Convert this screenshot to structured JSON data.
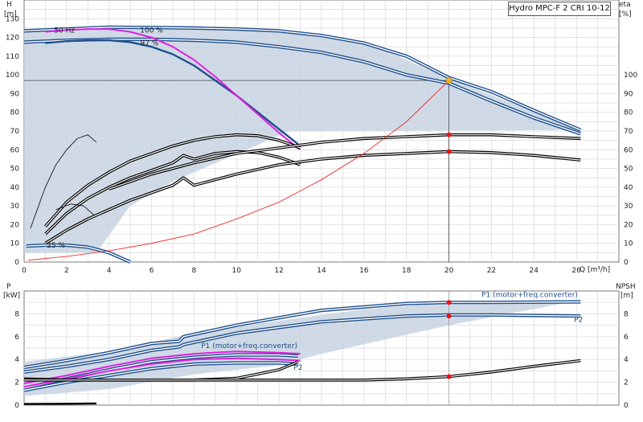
{
  "title": "Hydro MPC-F 2 CRI 10-12",
  "colors": {
    "envelope": "#c7d3e2",
    "curve": "#1f4f8c",
    "magenta": "#e020e0",
    "red": "#ee1111",
    "dot": "#f0b020",
    "black": "#000000"
  },
  "chart_data": [
    {
      "type": "line",
      "name": "head",
      "ylabel_left": [
        "H",
        "[m]"
      ],
      "ylabel_right": [
        "eta",
        "[%]"
      ],
      "xlabel": "Q [m³/h]",
      "xlim": [
        0,
        28
      ],
      "ylim": [
        0,
        140
      ],
      "x_ticks": [
        0,
        2,
        4,
        6,
        8,
        10,
        12,
        14,
        16,
        18,
        20,
        22,
        24,
        26
      ],
      "y_ticks_left": [
        0,
        10,
        20,
        30,
        40,
        50,
        60,
        70,
        80,
        90,
        100,
        110,
        120,
        130
      ],
      "y_ticks_right": [
        0,
        10,
        20,
        30,
        40,
        50,
        60,
        70,
        80,
        90,
        100
      ],
      "annotations": [
        {
          "text": "50 Hz",
          "x": 1.9,
          "y": 124
        },
        {
          "text": "100 %",
          "x": 6.0,
          "y": 124
        },
        {
          "text": "97 %",
          "x": 5.9,
          "y": 117
        },
        {
          "text": "25 %",
          "x": 1.5,
          "y": 9
        }
      ],
      "envelope": [
        [
          0,
          124
        ],
        [
          4,
          125.5
        ],
        [
          8,
          125
        ],
        [
          12,
          123.5
        ],
        [
          16,
          118
        ],
        [
          20,
          98
        ],
        [
          26.2,
          70.5
        ],
        [
          12.5,
          70
        ],
        [
          7,
          43
        ],
        [
          5,
          30
        ],
        [
          3.4,
          5
        ],
        [
          0,
          5
        ]
      ],
      "series": [
        {
          "name": "",
          "style": "blue-double",
          "x": [
            0,
            2,
            4,
            6,
            8,
            10,
            12,
            14,
            16,
            18,
            20,
            22,
            24,
            26.2
          ],
          "y": [
            123.5,
            124.5,
            125.5,
            125.3,
            125,
            124.5,
            123.5,
            121,
            117,
            110,
            98.5,
            91,
            81,
            70.5
          ]
        },
        {
          "name": "",
          "style": "blue-double",
          "x": [
            0,
            2,
            4,
            6,
            8,
            10,
            12,
            14,
            16,
            18,
            20,
            22,
            24,
            26.2
          ],
          "y": [
            117.5,
            118.5,
            119,
            119,
            118.5,
            117.5,
            115,
            112,
            107,
            100,
            95.5,
            86,
            77,
            68.5
          ]
        },
        {
          "name": "",
          "style": "blue",
          "x": [
            1,
            2,
            3,
            4,
            5,
            6,
            7,
            8,
            9,
            10,
            11,
            12,
            12.9
          ],
          "y": [
            117,
            118,
            118.5,
            118.5,
            117.5,
            115,
            111,
            105,
            97,
            89,
            80,
            71,
            63
          ]
        },
        {
          "name": "",
          "style": "magenta",
          "x": [
            1,
            2,
            3,
            4,
            5,
            6,
            7,
            8,
            9,
            10,
            11,
            12,
            13
          ],
          "y": [
            123,
            124,
            124.5,
            124.5,
            123,
            120,
            115,
            108,
            99,
            89,
            79,
            69,
            60
          ]
        },
        {
          "name": "",
          "style": "blue-double",
          "x": [
            0.1,
            1,
            2,
            3,
            4,
            5
          ],
          "y": [
            8.5,
            9,
            9,
            8,
            5,
            0
          ]
        },
        {
          "name": "",
          "style": "black-double",
          "x": [
            1,
            2,
            3,
            4,
            5,
            6,
            7,
            8,
            9,
            10,
            11,
            12,
            13
          ],
          "y": [
            19,
            32,
            41,
            48,
            54,
            58,
            62,
            65,
            67,
            68,
            67.5,
            65,
            61
          ]
        },
        {
          "name": "",
          "style": "black-double",
          "x": [
            1,
            2,
            3,
            4,
            5,
            6,
            7,
            7.5,
            8,
            9,
            10,
            11,
            12,
            13
          ],
          "y": [
            15,
            26,
            34,
            40,
            45,
            49,
            53,
            57,
            55,
            58,
            59,
            58.5,
            56,
            52
          ]
        },
        {
          "name": "",
          "style": "black-double",
          "x": [
            1,
            2,
            3,
            4,
            5,
            6,
            7,
            7.5,
            8,
            10,
            12,
            14,
            16,
            18,
            20,
            22,
            24,
            26.2
          ],
          "y": [
            10,
            17,
            23,
            28,
            33,
            37,
            41,
            45,
            41,
            47,
            52,
            55,
            57,
            58,
            59,
            58.5,
            57,
            54.5
          ]
        },
        {
          "name": "",
          "style": "black-double",
          "x": [
            4,
            6,
            8,
            10,
            12,
            14,
            16,
            18,
            20,
            22,
            24,
            26.2
          ],
          "y": [
            39,
            47,
            53,
            58,
            61,
            64,
            66,
            67,
            68,
            68,
            67,
            66
          ]
        },
        {
          "name": "",
          "style": "thin-black",
          "x": [
            0.3,
            1,
            1.5,
            2,
            2.5,
            3,
            3.4
          ],
          "y": [
            18,
            40,
            52,
            60,
            66,
            68,
            64
          ]
        },
        {
          "name": "",
          "style": "thin-black",
          "x": [
            1.5,
            2.2,
            2.8,
            3.3
          ],
          "y": [
            28,
            31,
            30,
            25
          ]
        },
        {
          "name": "",
          "style": "thin-red",
          "x": [
            0.2,
            2,
            4,
            6,
            8,
            10,
            12,
            14,
            16,
            18,
            20
          ],
          "y": [
            1,
            3,
            6,
            10,
            15,
            23,
            32,
            44,
            58,
            75,
            97
          ]
        }
      ],
      "duty_point": {
        "x": 20,
        "y": 97
      },
      "markers": [
        {
          "x": 20,
          "y": 68
        },
        {
          "x": 20,
          "y": 59
        }
      ]
    },
    {
      "type": "line",
      "name": "power",
      "ylabel_left": [
        "P",
        "[kW]"
      ],
      "ylabel_right": [
        "NPSH",
        "[m]"
      ],
      "xlim": [
        0,
        28
      ],
      "ylim": [
        0,
        10
      ],
      "y_ticks_left": [
        0,
        2,
        4,
        6,
        8
      ],
      "y_ticks_right": [
        0,
        2,
        4,
        6,
        8
      ],
      "labels": [
        {
          "text": "P1 (motor+freq.converter)",
          "x": 23.8,
          "y": 9.7
        },
        {
          "text": "P2",
          "x": 26.1,
          "y": 7.5
        },
        {
          "text": "P1 (motor+freq.converter)",
          "x": 10.6,
          "y": 5.2
        },
        {
          "text": "P2",
          "x": 12.9,
          "y": 3.3
        }
      ],
      "envelope": [
        [
          0,
          3.8
        ],
        [
          4,
          4.7
        ],
        [
          8,
          6.3
        ],
        [
          12,
          7.4
        ],
        [
          16,
          8.4
        ],
        [
          20,
          9
        ],
        [
          26.2,
          9.2
        ],
        [
          20,
          7
        ],
        [
          14,
          4.5
        ],
        [
          12,
          3.5
        ],
        [
          8,
          2.7
        ],
        [
          4,
          1.4
        ],
        [
          0,
          0.8
        ]
      ],
      "series": [
        {
          "name": "",
          "style": "blue-double",
          "x": [
            0,
            2,
            4,
            6,
            7.3,
            7.5,
            10,
            14,
            18,
            20,
            22,
            26.2
          ],
          "y": [
            3.3,
            3.9,
            4.6,
            5.4,
            5.6,
            6,
            7,
            8.3,
            8.9,
            9,
            9,
            9.05
          ]
        },
        {
          "name": "",
          "style": "blue-double",
          "x": [
            0,
            2,
            4,
            6,
            7.3,
            7.5,
            10,
            14,
            18,
            20,
            22,
            26.2
          ],
          "y": [
            2.9,
            3.4,
            4,
            4.8,
            5.1,
            5.3,
            6.3,
            7.3,
            7.8,
            7.9,
            7.9,
            7.8
          ]
        },
        {
          "name": "",
          "style": "blue-double",
          "x": [
            0,
            2,
            4,
            6,
            8,
            10,
            12,
            12.9
          ],
          "y": [
            1.5,
            2.3,
            3.1,
            3.8,
            4.2,
            4.4,
            4.4,
            4.3
          ]
        },
        {
          "name": "",
          "style": "blue-double",
          "x": [
            0,
            2,
            4,
            6,
            8,
            10,
            12,
            12.9
          ],
          "y": [
            1.3,
            2,
            2.6,
            3.2,
            3.6,
            3.7,
            3.7,
            3.6
          ]
        },
        {
          "name": "",
          "style": "magenta",
          "x": [
            0,
            2,
            4,
            6,
            8,
            10,
            12,
            13
          ],
          "y": [
            1.9,
            2.6,
            3.4,
            4.1,
            4.5,
            4.7,
            4.6,
            4.5
          ]
        },
        {
          "name": "",
          "style": "magenta",
          "x": [
            0,
            2,
            4,
            6,
            8,
            10,
            12,
            13
          ],
          "y": [
            1.6,
            2.3,
            3,
            3.6,
            4,
            4.1,
            4,
            3.9
          ]
        },
        {
          "name": "",
          "style": "black-double",
          "x": [
            0,
            2,
            4,
            6,
            8,
            10,
            12,
            12.9
          ],
          "y": [
            2.3,
            2.2,
            2.2,
            2.2,
            2.2,
            2.35,
            3.1,
            3.8
          ]
        },
        {
          "name": "",
          "style": "black-double",
          "x": [
            0,
            4,
            8,
            12,
            16,
            18,
            20,
            22,
            24,
            26.2
          ],
          "y": [
            2.2,
            2.2,
            2.2,
            2.2,
            2.2,
            2.3,
            2.5,
            2.9,
            3.4,
            3.9
          ]
        },
        {
          "name": "",
          "style": "black",
          "x": [
            0,
            2,
            3.4
          ],
          "y": [
            0.1,
            0.12,
            0.15
          ]
        }
      ],
      "markers": [
        {
          "x": 20,
          "y": 9
        },
        {
          "x": 20,
          "y": 7.8
        },
        {
          "x": 20,
          "y": 2.5
        }
      ]
    }
  ]
}
